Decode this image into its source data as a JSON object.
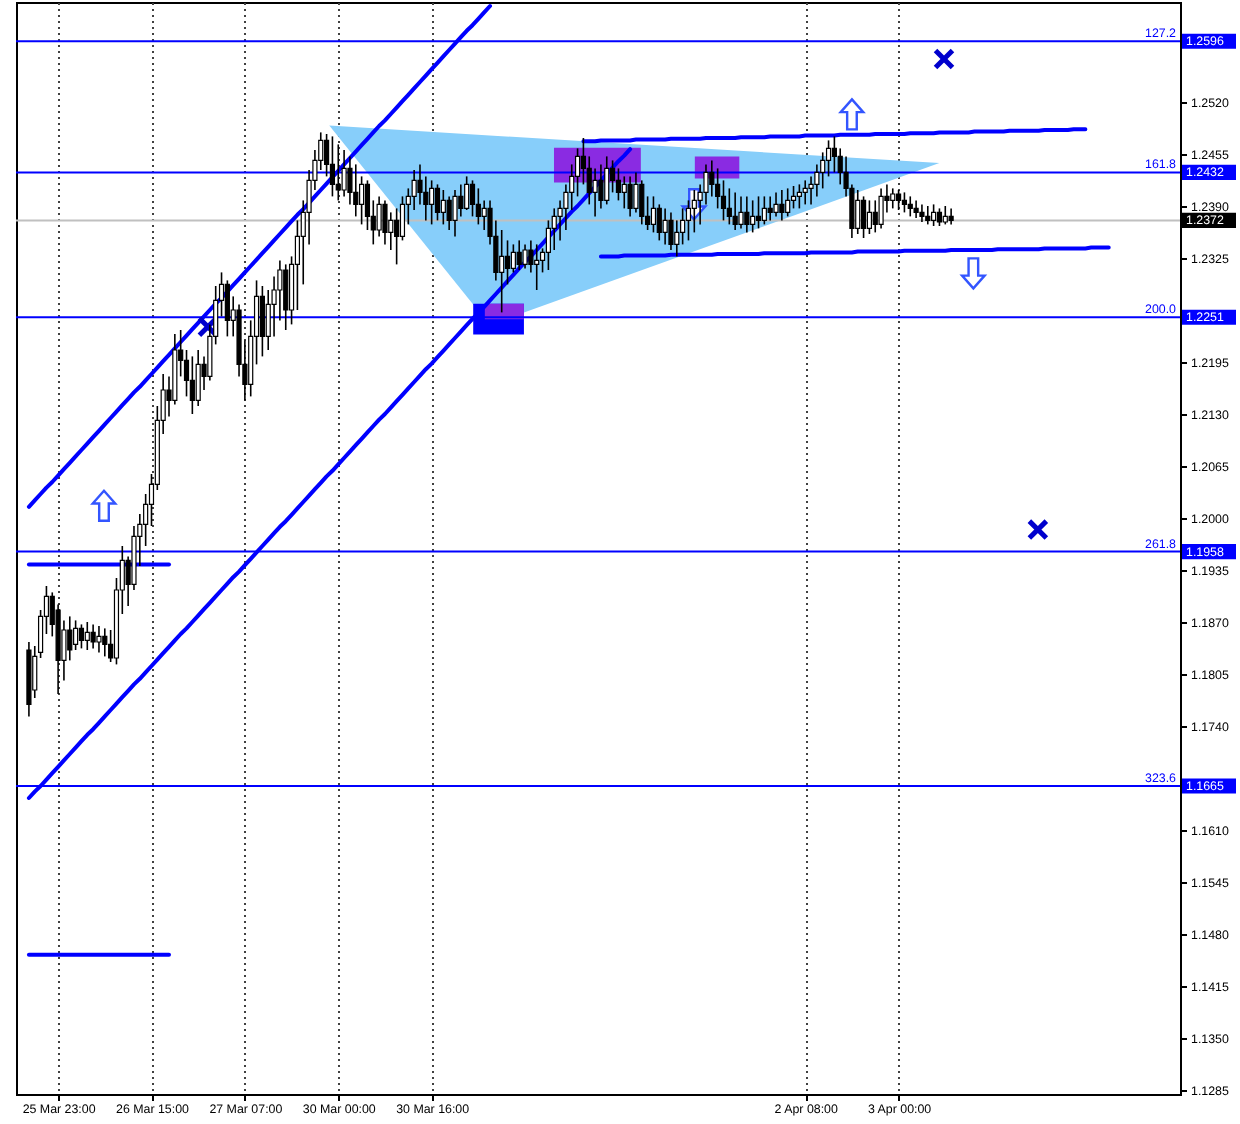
{
  "chart_data": {
    "type": "candlestick",
    "categories": [
      null,
      null,
      null,
      null,
      null,
      "25 Mar 23:00",
      null,
      null,
      null,
      null,
      null,
      null,
      null,
      null,
      null,
      null,
      null,
      null,
      null,
      null,
      null,
      "26 Mar 15:00",
      null,
      null,
      null,
      null,
      null,
      null,
      null,
      null,
      null,
      null,
      null,
      null,
      null,
      null,
      null,
      "27 Mar 07:00",
      null,
      null,
      null,
      null,
      null,
      null,
      null,
      null,
      null,
      null,
      null,
      null,
      null,
      null,
      null,
      "30 Mar 00:00",
      null,
      null,
      null,
      null,
      null,
      null,
      null,
      null,
      null,
      null,
      null,
      null,
      null,
      null,
      null,
      "30 Mar 16:00",
      null,
      null,
      null,
      null,
      null,
      null,
      null,
      null,
      null,
      null,
      null,
      null,
      null,
      null,
      null,
      null,
      null,
      null,
      null,
      null,
      null,
      null,
      null,
      null,
      null,
      null,
      null,
      null,
      null,
      null,
      null,
      null,
      null,
      null,
      null,
      null,
      null,
      null,
      null,
      null,
      null,
      null,
      null,
      null,
      null,
      null,
      null,
      null,
      null,
      null,
      null,
      null,
      null,
      null,
      null,
      null,
      null,
      null,
      null,
      null,
      null,
      null,
      null,
      "2 Apr 08:00",
      null,
      null,
      null,
      null,
      null,
      null,
      null,
      null,
      null,
      null,
      null,
      null,
      null,
      null,
      null,
      "3 Apr 00:00",
      null,
      null,
      null,
      null,
      null,
      null,
      null,
      null,
      null,
      null,
      null,
      null,
      null,
      null,
      null,
      null,
      null,
      null,
      null,
      null,
      null,
      null,
      null,
      null,
      null,
      null,
      null,
      null,
      null,
      null,
      null,
      null,
      null,
      null,
      null,
      null,
      null,
      null,
      null,
      null,
      null,
      null,
      null,
      null,
      null,
      null
    ],
    "ohlc": [
      [
        1.1835,
        1.1845,
        1.1752,
        1.1767
      ],
      [
        1.1785,
        1.184,
        1.1775,
        1.1827
      ],
      [
        1.1832,
        1.1885,
        1.1825,
        1.1877
      ],
      [
        1.1877,
        1.1915,
        1.1855,
        1.1902
      ],
      [
        1.1902,
        1.1907,
        1.1852,
        1.1867
      ],
      [
        1.1885,
        1.1892,
        1.178,
        1.1822
      ],
      [
        1.1822,
        1.1872,
        1.1797,
        1.186
      ],
      [
        1.186,
        1.1877,
        1.1822,
        1.1835
      ],
      [
        1.1842,
        1.1872,
        1.1835,
        1.1862
      ],
      [
        1.1862,
        1.1867,
        1.1837,
        1.1847
      ],
      [
        1.1847,
        1.187,
        1.1835,
        1.1857
      ],
      [
        1.1857,
        1.1867,
        1.1837,
        1.1845
      ],
      [
        1.1845,
        1.1865,
        1.1832,
        1.1852
      ],
      [
        1.1852,
        1.1862,
        1.1827,
        1.1842
      ],
      [
        1.1842,
        1.186,
        1.182,
        1.1825
      ],
      [
        1.1825,
        1.1925,
        1.1817,
        1.191
      ],
      [
        1.191,
        1.1965,
        1.188,
        1.1947
      ],
      [
        1.1947,
        1.1952,
        1.189,
        1.1917
      ],
      [
        1.1917,
        1.199,
        1.191,
        1.1977
      ],
      [
        1.1977,
        1.2005,
        1.194,
        1.1992
      ],
      [
        1.1992,
        1.203,
        1.1965,
        1.2017
      ],
      [
        1.2017,
        1.2055,
        1.199,
        1.2042
      ],
      [
        1.2042,
        1.214,
        1.2035,
        1.2122
      ],
      [
        1.2122,
        1.218,
        1.2105,
        1.216
      ],
      [
        1.216,
        1.2177,
        1.2127,
        1.2147
      ],
      [
        1.2147,
        1.223,
        1.2142,
        1.221
      ],
      [
        1.221,
        1.2235,
        1.2177,
        1.2197
      ],
      [
        1.2197,
        1.221,
        1.2152,
        1.2172
      ],
      [
        1.2172,
        1.2202,
        1.213,
        1.2147
      ],
      [
        1.2147,
        1.221,
        1.214,
        1.2192
      ],
      [
        1.2192,
        1.2202,
        1.216,
        1.2177
      ],
      [
        1.2177,
        1.2242,
        1.2172,
        1.2227
      ],
      [
        1.2227,
        1.229,
        1.2217,
        1.2272
      ],
      [
        1.2272,
        1.2307,
        1.2252,
        1.2292
      ],
      [
        1.2292,
        1.2297,
        1.2227,
        1.2247
      ],
      [
        1.2247,
        1.2277,
        1.2227,
        1.226
      ],
      [
        1.226,
        1.2267,
        1.2177,
        1.2192
      ],
      [
        1.2192,
        1.2222,
        1.2147,
        1.2167
      ],
      [
        1.2167,
        1.2247,
        1.2152,
        1.2227
      ],
      [
        1.2227,
        1.2297,
        1.2192,
        1.2277
      ],
      [
        1.2277,
        1.229,
        1.2202,
        1.2227
      ],
      [
        1.2227,
        1.2285,
        1.221,
        1.2267
      ],
      [
        1.2267,
        1.2302,
        1.2227,
        1.2285
      ],
      [
        1.2285,
        1.2322,
        1.2247,
        1.231
      ],
      [
        1.231,
        1.2317,
        1.2235,
        1.226
      ],
      [
        1.226,
        1.2327,
        1.2242,
        1.2317
      ],
      [
        1.2317,
        1.2372,
        1.226,
        1.2352
      ],
      [
        1.2352,
        1.2397,
        1.2292,
        1.2382
      ],
      [
        1.2382,
        1.2435,
        1.2342,
        1.2422
      ],
      [
        1.2422,
        1.246,
        1.241,
        1.2447
      ],
      [
        1.2447,
        1.2482,
        1.2435,
        1.2472
      ],
      [
        1.2472,
        1.248,
        1.2427,
        1.2442
      ],
      [
        1.2442,
        1.2477,
        1.2402,
        1.2417
      ],
      [
        1.2417,
        1.2467,
        1.2397,
        1.241
      ],
      [
        1.241,
        1.246,
        1.2402,
        1.2437
      ],
      [
        1.2437,
        1.2452,
        1.2392,
        1.2407
      ],
      [
        1.2407,
        1.2442,
        1.2377,
        1.2392
      ],
      [
        1.2392,
        1.2427,
        1.2367,
        1.2417
      ],
      [
        1.2417,
        1.2422,
        1.236,
        1.2377
      ],
      [
        1.2377,
        1.2397,
        1.2342,
        1.236
      ],
      [
        1.236,
        1.2402,
        1.2352,
        1.2392
      ],
      [
        1.2392,
        1.2397,
        1.2342,
        1.2357
      ],
      [
        1.2357,
        1.2382,
        1.2335,
        1.2372
      ],
      [
        1.2372,
        1.2387,
        1.2317,
        1.2352
      ],
      [
        1.2352,
        1.2402,
        1.2347,
        1.2392
      ],
      [
        1.2392,
        1.2412,
        1.2367,
        1.2402
      ],
      [
        1.2402,
        1.2435,
        1.2385,
        1.2422
      ],
      [
        1.2422,
        1.2442,
        1.2392,
        1.2407
      ],
      [
        1.2407,
        1.2427,
        1.2372,
        1.2392
      ],
      [
        1.2392,
        1.2422,
        1.2367,
        1.2412
      ],
      [
        1.2412,
        1.2417,
        1.2372,
        1.2382
      ],
      [
        1.2382,
        1.241,
        1.2367,
        1.2397
      ],
      [
        1.2397,
        1.2402,
        1.236,
        1.2372
      ],
      [
        1.2372,
        1.241,
        1.2352,
        1.2402
      ],
      [
        1.2402,
        1.2417,
        1.2377,
        1.2387
      ],
      [
        1.2387,
        1.2427,
        1.2385,
        1.2417
      ],
      [
        1.2417,
        1.2422,
        1.2377,
        1.2392
      ],
      [
        1.2392,
        1.2412,
        1.2367,
        1.2377
      ],
      [
        1.2377,
        1.2397,
        1.236,
        1.2387
      ],
      [
        1.2387,
        1.2397,
        1.2342,
        1.2352
      ],
      [
        1.2352,
        1.2372,
        1.2297,
        1.2307
      ],
      [
        1.2307,
        1.236,
        1.2257,
        1.2327
      ],
      [
        1.2327,
        1.2347,
        1.2292,
        1.2312
      ],
      [
        1.2312,
        1.2342,
        1.2307,
        1.2332
      ],
      [
        1.2332,
        1.2347,
        1.231,
        1.2317
      ],
      [
        1.2317,
        1.2342,
        1.2312,
        1.2335
      ],
      [
        1.2335,
        1.2347,
        1.2307,
        1.2317
      ],
      [
        1.2317,
        1.2342,
        1.2285,
        1.2322
      ],
      [
        1.2322,
        1.2337,
        1.2307,
        1.2332
      ],
      [
        1.2332,
        1.2372,
        1.231,
        1.2362
      ],
      [
        1.2362,
        1.2387,
        1.2335,
        1.2377
      ],
      [
        1.2377,
        1.2397,
        1.2347,
        1.2387
      ],
      [
        1.2387,
        1.2417,
        1.236,
        1.2407
      ],
      [
        1.2407,
        1.2442,
        1.2385,
        1.2427
      ],
      [
        1.2427,
        1.2462,
        1.2402,
        1.2452
      ],
      [
        1.2452,
        1.2475,
        1.2417,
        1.2437
      ],
      [
        1.2437,
        1.2452,
        1.2392,
        1.2407
      ],
      [
        1.2407,
        1.2437,
        1.2377,
        1.2422
      ],
      [
        1.2422,
        1.2442,
        1.2387,
        1.2397
      ],
      [
        1.2397,
        1.2452,
        1.2392,
        1.2437
      ],
      [
        1.2437,
        1.2447,
        1.2407,
        1.2422
      ],
      [
        1.2422,
        1.2437,
        1.2397,
        1.2407
      ],
      [
        1.2407,
        1.2427,
        1.2387,
        1.2417
      ],
      [
        1.2417,
        1.2427,
        1.2377,
        1.2387
      ],
      [
        1.2387,
        1.2432,
        1.2382,
        1.2417
      ],
      [
        1.2417,
        1.2422,
        1.2367,
        1.2377
      ],
      [
        1.2377,
        1.2402,
        1.236,
        1.2367
      ],
      [
        1.2367,
        1.2402,
        1.2357,
        1.2387
      ],
      [
        1.2387,
        1.2392,
        1.2347,
        1.2357
      ],
      [
        1.2357,
        1.2387,
        1.2342,
        1.2372
      ],
      [
        1.2372,
        1.2382,
        1.2335,
        1.2342
      ],
      [
        1.2342,
        1.2372,
        1.2327,
        1.2357
      ],
      [
        1.2357,
        1.2387,
        1.2342,
        1.2372
      ],
      [
        1.2372,
        1.2397,
        1.2347,
        1.2387
      ],
      [
        1.2387,
        1.241,
        1.2357,
        1.2397
      ],
      [
        1.2397,
        1.2417,
        1.2367,
        1.2407
      ],
      [
        1.2407,
        1.2442,
        1.2392,
        1.2432
      ],
      [
        1.2432,
        1.2447,
        1.2402,
        1.2417
      ],
      [
        1.2417,
        1.2437,
        1.2387,
        1.2402
      ],
      [
        1.2402,
        1.2422,
        1.2372,
        1.2387
      ],
      [
        1.2387,
        1.2412,
        1.2367,
        1.2377
      ],
      [
        1.2377,
        1.2407,
        1.236,
        1.2367
      ],
      [
        1.2367,
        1.2402,
        1.2362,
        1.2382
      ],
      [
        1.2382,
        1.2402,
        1.2357,
        1.2367
      ],
      [
        1.2367,
        1.2397,
        1.2357,
        1.2377
      ],
      [
        1.2377,
        1.2402,
        1.2362,
        1.2372
      ],
      [
        1.2372,
        1.2402,
        1.2367,
        1.2387
      ],
      [
        1.2387,
        1.2402,
        1.2372,
        1.2382
      ],
      [
        1.2382,
        1.2407,
        1.2377,
        1.2392
      ],
      [
        1.2392,
        1.241,
        1.2372,
        1.2382
      ],
      [
        1.2382,
        1.2412,
        1.2377,
        1.2397
      ],
      [
        1.2397,
        1.2415,
        1.2387,
        1.2402
      ],
      [
        1.2402,
        1.2417,
        1.2387,
        1.2407
      ],
      [
        1.2407,
        1.2422,
        1.2392,
        1.2412
      ],
      [
        1.2412,
        1.2427,
        1.2392,
        1.2417
      ],
      [
        1.2417,
        1.2442,
        1.2402,
        1.2432
      ],
      [
        1.2432,
        1.2457,
        1.2412,
        1.2447
      ],
      [
        1.2447,
        1.2472,
        1.2427,
        1.2462
      ],
      [
        1.2462,
        1.2477,
        1.2432,
        1.2452
      ],
      [
        1.2452,
        1.2462,
        1.2417,
        1.2432
      ],
      [
        1.2432,
        1.2452,
        1.2402,
        1.2412
      ],
      [
        1.2412,
        1.2417,
        1.235,
        1.2362
      ],
      [
        1.2362,
        1.241,
        1.2355,
        1.2397
      ],
      [
        1.2397,
        1.2402,
        1.235,
        1.2362
      ],
      [
        1.2362,
        1.2397,
        1.2355,
        1.2382
      ],
      [
        1.2382,
        1.2397,
        1.2357,
        1.2367
      ],
      [
        1.2367,
        1.2412,
        1.2362,
        1.2402
      ],
      [
        1.2402,
        1.2417,
        1.2382,
        1.2397
      ],
      [
        1.2397,
        1.2412,
        1.2387,
        1.2405
      ],
      [
        1.2405,
        1.241,
        1.2385,
        1.2397
      ],
      [
        1.2397,
        1.2407,
        1.2382,
        1.2392
      ],
      [
        1.2392,
        1.2402,
        1.2377,
        1.2387
      ],
      [
        1.2387,
        1.2397,
        1.2375,
        1.2382
      ],
      [
        1.2382,
        1.2392,
        1.237,
        1.2377
      ],
      [
        1.2377,
        1.239,
        1.2367,
        1.2372
      ],
      [
        1.2372,
        1.2392,
        1.2365,
        1.2382
      ],
      [
        1.2382,
        1.2387,
        1.2365,
        1.237
      ],
      [
        1.237,
        1.239,
        1.2367,
        1.2377
      ],
      [
        1.2377,
        1.2387,
        1.2367,
        1.2372
      ],
      null,
      null,
      null,
      null,
      null,
      null,
      null,
      null,
      null,
      null,
      null,
      null,
      null,
      null,
      null,
      null,
      null,
      null,
      null,
      null,
      null,
      null,
      null,
      null,
      null,
      null,
      null,
      null,
      null,
      null,
      null,
      null,
      null,
      null,
      null,
      null,
      null
    ],
    "ylim": [
      1.128,
      1.2645
    ],
    "yticks": [
      {
        "value": 1.252,
        "label": "1.2520"
      },
      1.2455,
      {
        "value": 1.239,
        "label": "1.2390"
      },
      1.2325,
      1.2195,
      {
        "value": 1.213,
        "label": "1.2130"
      },
      1.2065,
      {
        "value": 1.2,
        "label": "1.2000"
      },
      1.1935,
      {
        "value": 1.187,
        "label": "1.1870"
      },
      1.1805,
      {
        "value": 1.174,
        "label": "1.1740"
      },
      {
        "value": 1.161,
        "label": "1.1610"
      },
      1.1545,
      {
        "value": 1.148,
        "label": "1.1480"
      },
      1.1415,
      {
        "value": 1.135,
        "label": "1.1350"
      },
      1.1285
    ],
    "grid": "x",
    "series": [
      {
        "type": "line",
        "color": "#0000ff",
        "values": [
          1.2014,
          1.2022,
          1.203,
          1.2038,
          1.2045,
          1.2053,
          1.2061,
          1.2069,
          1.2077,
          1.2085,
          1.2093,
          1.2101,
          1.2109,
          1.2117,
          1.2125,
          1.2133,
          1.2141,
          1.2149,
          1.2157,
          1.2164,
          1.2172,
          1.218,
          1.2188,
          1.2196,
          1.2204,
          1.2212,
          1.222,
          1.2228,
          1.2236,
          1.2244,
          1.2252,
          1.226,
          1.2268,
          1.2275,
          1.2283,
          1.2291,
          1.2299,
          1.2307,
          1.2315,
          1.2323,
          1.2331,
          1.2339,
          1.2347,
          1.2355,
          1.2363,
          1.2371,
          1.2379,
          1.2386,
          1.2394,
          1.2402,
          1.241,
          1.2418,
          1.2426,
          1.2434,
          1.2442,
          1.245,
          1.2458,
          1.2466,
          1.2474,
          1.2482,
          1.249,
          1.2497,
          1.2505,
          1.2513,
          1.2521,
          1.2529,
          1.2537,
          1.2545,
          1.2553,
          1.2561,
          1.2569,
          1.2577,
          1.2585,
          1.2593,
          1.2601,
          1.2609,
          1.2616,
          1.2624,
          1.2632,
          1.264,
          null,
          null,
          null,
          null,
          null,
          null,
          null,
          null,
          null,
          null,
          null,
          null,
          null,
          null,
          null,
          null,
          null,
          null,
          null,
          null,
          null,
          null,
          null,
          null,
          null,
          null,
          null,
          null,
          null,
          null,
          null,
          null,
          null,
          null,
          null,
          null,
          null,
          null,
          null,
          null,
          null,
          null,
          null,
          null,
          null,
          null,
          null,
          null,
          null,
          null,
          null,
          null,
          null,
          null,
          null,
          null,
          null,
          null,
          null,
          null,
          null,
          null,
          null,
          null,
          null,
          null,
          null,
          null,
          null,
          null,
          null,
          null,
          null,
          null,
          null,
          null,
          null,
          null,
          null,
          null,
          null,
          null,
          null,
          null,
          null,
          null,
          null,
          null,
          null,
          null,
          null,
          null,
          null,
          null,
          null,
          null,
          null,
          null,
          null,
          null,
          null,
          null,
          null,
          null,
          null,
          null,
          null,
          null,
          null,
          null,
          null,
          null,
          null,
          null,
          null,
          null
        ]
      },
      {
        "type": "line",
        "color": "#0000ff",
        "values": [
          1.165,
          1.1658,
          1.1665,
          1.1673,
          1.1681,
          1.1689,
          1.1697,
          1.1705,
          1.1713,
          1.1721,
          1.1729,
          1.1736,
          1.1744,
          1.1752,
          1.176,
          1.1768,
          1.1776,
          1.1784,
          1.1792,
          1.1799,
          1.1807,
          1.1815,
          1.1823,
          1.1831,
          1.1839,
          1.1847,
          1.1855,
          1.1862,
          1.187,
          1.1878,
          1.1886,
          1.1894,
          1.1902,
          1.191,
          1.1918,
          1.1926,
          1.1933,
          1.1941,
          1.1949,
          1.1957,
          1.1965,
          1.1973,
          1.1981,
          1.1989,
          1.1996,
          1.2004,
          1.2012,
          1.202,
          1.2028,
          1.2036,
          1.2044,
          1.2052,
          1.2059,
          1.2067,
          1.2075,
          1.2083,
          1.2091,
          1.2099,
          1.2107,
          1.2115,
          1.2123,
          1.213,
          1.2138,
          1.2146,
          1.2154,
          1.2162,
          1.217,
          1.2178,
          1.2186,
          1.2193,
          1.2201,
          1.2209,
          1.2217,
          1.2225,
          1.2233,
          1.2241,
          1.2249,
          1.2256,
          1.2264,
          1.2272,
          1.228,
          1.2288,
          1.2296,
          1.2304,
          1.2312,
          1.232,
          1.2327,
          1.2335,
          1.2343,
          1.2351,
          1.2359,
          1.2367,
          1.2375,
          1.2383,
          1.239,
          1.2398,
          1.2406,
          1.2414,
          1.2422,
          1.243,
          1.2438,
          1.2446,
          1.2453,
          1.2461,
          null,
          null,
          null,
          null,
          null,
          null,
          null,
          null,
          null,
          null,
          null,
          null,
          null,
          null,
          null,
          null,
          null,
          null,
          null,
          null,
          null,
          null,
          null,
          null,
          null,
          null,
          null,
          null,
          null,
          null,
          null,
          null,
          null,
          null,
          null,
          null,
          null,
          null,
          null,
          null,
          null,
          null,
          null,
          null,
          null,
          null,
          null,
          null,
          null,
          null,
          null,
          null,
          null,
          null,
          null,
          null,
          null,
          null,
          null,
          null,
          null,
          null,
          null,
          null,
          null,
          null,
          null,
          null,
          null,
          null,
          null,
          null,
          null,
          null,
          null,
          null,
          null,
          null,
          null,
          null,
          null,
          null,
          null,
          null,
          null,
          null,
          null,
          null,
          null,
          null,
          null,
          null
        ]
      },
      {
        "type": "line",
        "color": "#0000ff",
        "values": [
          null,
          null,
          null,
          null,
          null,
          null,
          null,
          null,
          null,
          null,
          null,
          null,
          null,
          null,
          null,
          null,
          null,
          null,
          null,
          null,
          null,
          null,
          null,
          null,
          null,
          null,
          null,
          null,
          null,
          null,
          null,
          null,
          null,
          null,
          null,
          null,
          null,
          null,
          null,
          null,
          null,
          null,
          null,
          null,
          null,
          null,
          null,
          null,
          null,
          null,
          null,
          null,
          null,
          null,
          null,
          null,
          null,
          null,
          null,
          null,
          null,
          null,
          null,
          null,
          null,
          null,
          null,
          null,
          null,
          null,
          null,
          null,
          null,
          null,
          null,
          null,
          null,
          null,
          null,
          null,
          null,
          null,
          null,
          null,
          null,
          null,
          null,
          null,
          null,
          null,
          null,
          null,
          null,
          null,
          null,
          1.2471,
          1.2471,
          1.2471,
          1.2472,
          1.2472,
          1.2472,
          1.2472,
          1.2472,
          1.2472,
          1.2473,
          1.2473,
          1.2473,
          1.2473,
          1.2473,
          1.2473,
          1.2474,
          1.2474,
          1.2474,
          1.2474,
          1.2474,
          1.2474,
          1.2475,
          1.2475,
          1.2475,
          1.2475,
          1.2475,
          1.2475,
          1.2476,
          1.2476,
          1.2476,
          1.2476,
          1.2476,
          1.2477,
          1.2477,
          1.2477,
          1.2477,
          1.2477,
          1.2477,
          1.2478,
          1.2478,
          1.2478,
          1.2478,
          1.2478,
          1.2478,
          1.2479,
          1.2479,
          1.2479,
          1.2479,
          1.2479,
          1.2479,
          1.248,
          1.248,
          1.248,
          1.248,
          1.248,
          1.248,
          1.2481,
          1.2481,
          1.2481,
          1.2481,
          1.2481,
          1.2482,
          1.2482,
          1.2482,
          1.2482,
          1.2482,
          1.2482,
          1.2483,
          1.2483,
          1.2483,
          1.2483,
          1.2483,
          1.2483,
          1.2484,
          1.2484,
          1.2484,
          1.2484,
          1.2484,
          1.2484,
          1.2485,
          1.2485,
          1.2485,
          1.2485,
          1.2485,
          1.2486,
          1.2486,
          1.2486,
          null,
          null,
          null,
          null,
          null,
          null,
          null,
          null,
          null,
          null,
          null,
          null,
          null,
          null
        ]
      },
      {
        "type": "line",
        "color": "#0000ff",
        "values": [
          null,
          null,
          null,
          null,
          null,
          null,
          null,
          null,
          null,
          null,
          null,
          null,
          null,
          null,
          null,
          null,
          null,
          null,
          null,
          null,
          null,
          null,
          null,
          null,
          null,
          null,
          null,
          null,
          null,
          null,
          null,
          null,
          null,
          null,
          null,
          null,
          null,
          null,
          null,
          null,
          null,
          null,
          null,
          null,
          null,
          null,
          null,
          null,
          null,
          null,
          null,
          null,
          null,
          null,
          null,
          null,
          null,
          null,
          null,
          null,
          null,
          null,
          null,
          null,
          null,
          null,
          null,
          null,
          null,
          null,
          null,
          null,
          null,
          null,
          null,
          null,
          null,
          null,
          null,
          null,
          null,
          null,
          null,
          null,
          null,
          null,
          null,
          null,
          null,
          null,
          null,
          null,
          null,
          null,
          null,
          null,
          null,
          null,
          1.2327,
          1.2327,
          1.2327,
          1.2327,
          1.2328,
          1.2328,
          1.2328,
          1.2328,
          1.2328,
          1.2328,
          1.2328,
          1.2328,
          1.2329,
          1.2329,
          1.2329,
          1.2329,
          1.2329,
          1.2329,
          1.2329,
          1.2329,
          1.233,
          1.233,
          1.233,
          1.233,
          1.233,
          1.233,
          1.233,
          1.233,
          1.2331,
          1.2331,
          1.2331,
          1.2331,
          1.2331,
          1.2331,
          1.2331,
          1.2331,
          1.2332,
          1.2332,
          1.2332,
          1.2332,
          1.2332,
          1.2332,
          1.2332,
          1.2332,
          1.2333,
          1.2333,
          1.2333,
          1.2333,
          1.2333,
          1.2333,
          1.2333,
          1.2333,
          1.2334,
          1.2334,
          1.2334,
          1.2334,
          1.2334,
          1.2334,
          1.2334,
          1.2334,
          1.2335,
          1.2335,
          1.2335,
          1.2335,
          1.2335,
          1.2335,
          1.2335,
          1.2335,
          1.2336,
          1.2336,
          1.2336,
          1.2336,
          1.2336,
          1.2336,
          1.2336,
          1.2336,
          1.2337,
          1.2337,
          1.2337,
          1.2337,
          1.2337,
          1.2337,
          1.2337,
          1.2337,
          1.2338,
          1.2338,
          1.2338,
          1.2338,
          null,
          null,
          null,
          null,
          null,
          null,
          null,
          null,
          null,
          null
        ]
      },
      {
        "type": "line",
        "color": "#0000ff",
        "values": [
          1.1942,
          1.1942,
          1.1942,
          1.1942,
          1.1942,
          1.1942,
          1.1942,
          1.1942,
          1.1942,
          1.1942,
          1.1942,
          1.1942,
          1.1942,
          1.1942,
          1.1942,
          1.1942,
          1.1942,
          1.1942,
          1.1942,
          1.1942,
          1.1942,
          1.1942,
          1.1942,
          1.1942,
          1.1942,
          null,
          null,
          null,
          null,
          null,
          null,
          null,
          null,
          null,
          null,
          null,
          null,
          null,
          null,
          null,
          null,
          null,
          null,
          null,
          null,
          null,
          null,
          null,
          null,
          null,
          null,
          null,
          null,
          null,
          null,
          null,
          null,
          null,
          null,
          null,
          null,
          null,
          null,
          null,
          null,
          null,
          null,
          null,
          null,
          null,
          null,
          null,
          null,
          null,
          null,
          null,
          null,
          null,
          null,
          null,
          null,
          null,
          null,
          null,
          null,
          null,
          null,
          null,
          null,
          null,
          null,
          null,
          null,
          null,
          null,
          null,
          null,
          null,
          null,
          null,
          null,
          null,
          null,
          null,
          null,
          null,
          null,
          null,
          null,
          null,
          null,
          null,
          null,
          null,
          null,
          null,
          null,
          null,
          null,
          null,
          null,
          null,
          null,
          null,
          null,
          null,
          null,
          null,
          null,
          null,
          null,
          null,
          null,
          null,
          null,
          null,
          null,
          null,
          null,
          null,
          null,
          null,
          null,
          null,
          null,
          null,
          null,
          null,
          null,
          null,
          null,
          null,
          null,
          null,
          null,
          null,
          null,
          null,
          null,
          null,
          null,
          null,
          null,
          null,
          null,
          null,
          null,
          null,
          null,
          null,
          null,
          null,
          null,
          null,
          null,
          null,
          null,
          null,
          null,
          null,
          null,
          null,
          null,
          null,
          null,
          null,
          null,
          null,
          null,
          null,
          null,
          null,
          null,
          null,
          null,
          null
        ]
      },
      {
        "type": "line",
        "color": "#0000ff",
        "values": [
          1.1454,
          1.1454,
          1.1454,
          1.1454,
          1.1454,
          1.1454,
          1.1454,
          1.1454,
          1.1454,
          1.1454,
          1.1454,
          1.1454,
          1.1454,
          1.1454,
          1.1454,
          1.1454,
          1.1454,
          1.1454,
          1.1454,
          1.1454,
          1.1454,
          1.1454,
          1.1454,
          1.1454,
          1.1454,
          null,
          null,
          null,
          null,
          null,
          null,
          null,
          null,
          null,
          null,
          null,
          null,
          null,
          null,
          null,
          null,
          null,
          null,
          null,
          null,
          null,
          null,
          null,
          null,
          null,
          null,
          null,
          null,
          null,
          null,
          null,
          null,
          null,
          null,
          null,
          null,
          null,
          null,
          null,
          null,
          null,
          null,
          null,
          null,
          null,
          null,
          null,
          null,
          null,
          null,
          null,
          null,
          null,
          null,
          null,
          null,
          null,
          null,
          null,
          null,
          null,
          null,
          null,
          null,
          null,
          null,
          null,
          null,
          null,
          null,
          null,
          null,
          null,
          null,
          null,
          null,
          null,
          null,
          null,
          null,
          null,
          null,
          null,
          null,
          null,
          null,
          null,
          null,
          null,
          null,
          null,
          null,
          null,
          null,
          null,
          null,
          null,
          null,
          null,
          null,
          null,
          null,
          null,
          null,
          null,
          null,
          null,
          null,
          null,
          null,
          null,
          null,
          null,
          null,
          null,
          null,
          null,
          null,
          null,
          null,
          null,
          null,
          null,
          null,
          null,
          null,
          null,
          null,
          null,
          null,
          null,
          null,
          null,
          null,
          null,
          null,
          null,
          null,
          null,
          null,
          null,
          null,
          null,
          null,
          null,
          null,
          null,
          null,
          null,
          null,
          null,
          null,
          null,
          null,
          null,
          null,
          null,
          null,
          null,
          null,
          null,
          null,
          null,
          null,
          null,
          null,
          null,
          null,
          null,
          null,
          null
        ]
      }
    ],
    "ref_lines": [
      {
        "axis": "y",
        "value": 1.2596,
        "label": "1.2596",
        "color": "#0000ff"
      },
      {
        "axis": "y",
        "value": 1.2432,
        "label": "1.2432",
        "color": "#0000ff"
      },
      {
        "axis": "y",
        "value": 1.2251,
        "label": "1.2251",
        "color": "#0000ff"
      },
      {
        "axis": "y",
        "value": 1.1958,
        "label": "1.1958",
        "color": "#0000ff"
      },
      {
        "axis": "y",
        "value": 1.1665,
        "label": "1.1665",
        "color": "#0000ff"
      },
      {
        "axis": "y",
        "value": 1.2372,
        "label": "1.2372",
        "color": "#c0c0c0"
      }
    ],
    "annotations": [
      {
        "text": "127.2",
        "y": 1.2596
      },
      {
        "text": "161.8",
        "y": 1.2432
      },
      {
        "text": "200.0",
        "y": 1.2251
      },
      {
        "text": "261.8",
        "y": 1.1958
      },
      {
        "text": "323.6",
        "y": 1.1665
      }
    ]
  }
}
